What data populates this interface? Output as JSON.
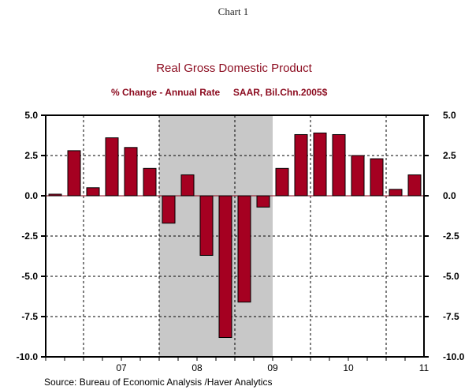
{
  "chart_data": {
    "type": "bar",
    "chart_label": "Chart 1",
    "title": "Real Gross Domestic Product",
    "subtitle": "% Change - Annual Rate     SAAR, Bil.Chn.2005$",
    "source": "Source:  Bureau of Economic Analysis /Haver Analytics",
    "categories": [
      "2006Q3",
      "2006Q4",
      "2007Q1",
      "2007Q2",
      "2007Q3",
      "2007Q4",
      "2008Q1",
      "2008Q2",
      "2008Q3",
      "2008Q4",
      "2009Q1",
      "2009Q2",
      "2009Q3",
      "2009Q4",
      "2010Q1",
      "2010Q2",
      "2010Q3",
      "2010Q4",
      "2011Q1",
      "2011Q2"
    ],
    "values": [
      0.1,
      2.8,
      0.5,
      3.6,
      3.0,
      1.7,
      -1.7,
      1.3,
      -3.7,
      -8.8,
      -6.6,
      -0.7,
      1.7,
      3.8,
      3.9,
      3.8,
      2.5,
      2.3,
      0.4,
      1.3
    ],
    "ylim": [
      -10,
      5
    ],
    "yticks": [
      "5.0",
      "2.5",
      "0.0",
      "-2.5",
      "-5.0",
      "-7.5",
      "-10.0"
    ],
    "ytick_values": [
      5,
      2.5,
      0,
      -2.5,
      -5,
      -7.5,
      -10
    ],
    "xtick_labels": [
      "07",
      "08",
      "09",
      "10",
      "11"
    ],
    "recession_shading": [
      "2008Q1",
      "2009Q2"
    ],
    "bar_color": "#A50021",
    "title_color": "#8B0A1E",
    "grid": true
  }
}
